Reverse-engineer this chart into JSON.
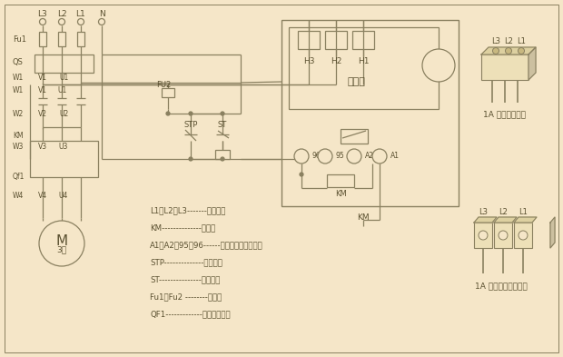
{
  "bg_color": "#f5e6c8",
  "line_color": "#8a8060",
  "text_color": "#5a5030",
  "fig_width": 6.2,
  "fig_height": 3.93,
  "legend_items": [
    [
      "L1、L2、L3-------三相电源"
    ],
    [
      "KM--------------接触器"
    ],
    [
      "A1、A2、95、96------保护器接线端子号码"
    ],
    [
      "STP--------------停止按钮"
    ],
    [
      "ST---------------启动按钮"
    ],
    [
      "Fu1、Fu2 --------熔断器"
    ],
    [
      "QF1-------------电动机保护器"
    ]
  ]
}
